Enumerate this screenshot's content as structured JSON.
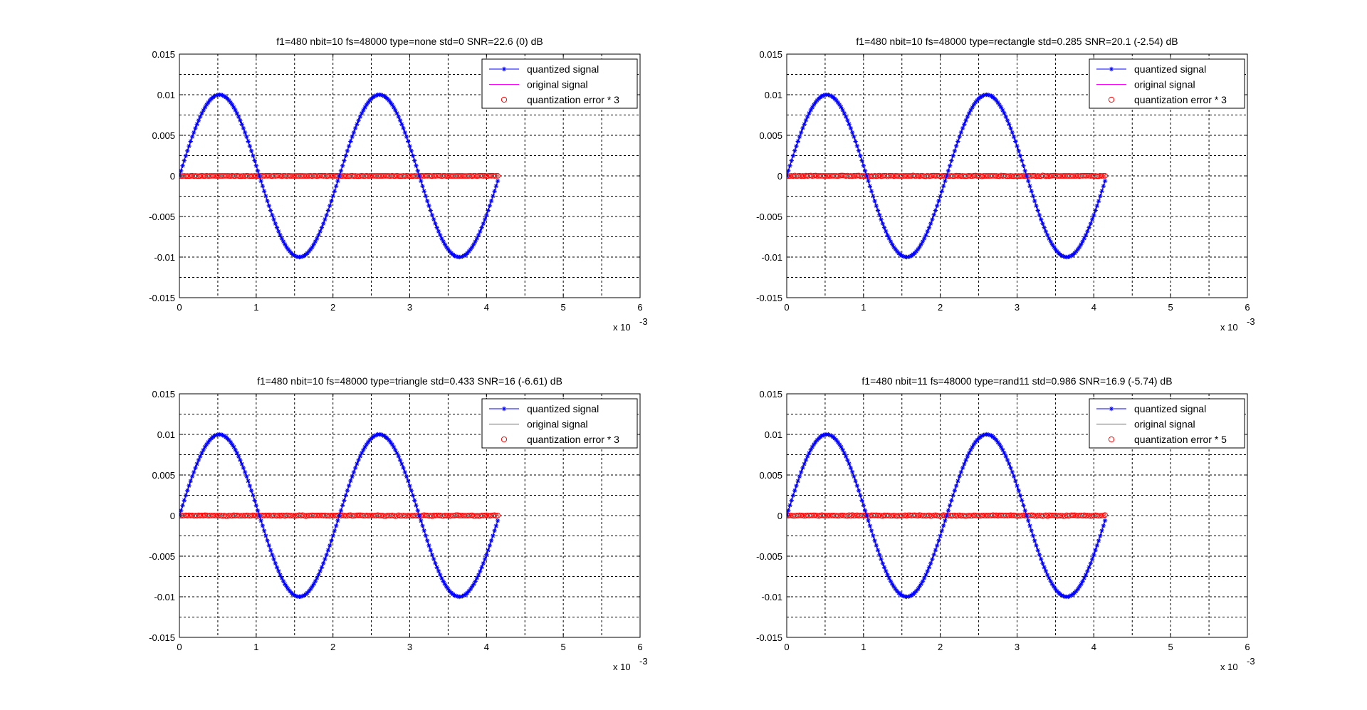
{
  "figure": {
    "x_multiplier_text": "x 10",
    "x_multiplier_exp": "-3"
  },
  "colors": {
    "quantized": "#0000ff",
    "original": "#ff00ff",
    "error": "#ff0000",
    "grid": "#000000"
  },
  "chart_data": [
    {
      "type": "line",
      "title": "f1=480 nbit=10 fs=48000 type=none std=0 SNR=22.6 (0) dB",
      "xlim": [
        0,
        6
      ],
      "ylim": [
        -0.015,
        0.015
      ],
      "x_ticks": [
        "0",
        "1",
        "2",
        "3",
        "4",
        "5",
        "6"
      ],
      "y_ticks": [
        "0.015",
        "0.01",
        "0.005",
        "0",
        "-0.005",
        "-0.01",
        "-0.015"
      ],
      "grid": true,
      "legend_position": "top-right",
      "params": {
        "f1": 480,
        "fs": 48000,
        "nbit": 10,
        "dither": "none",
        "amplitude": 0.01,
        "error_scale": 3
      },
      "series": [
        {
          "name": "quantized signal",
          "style": "line with asterisk markers",
          "color": "#0000ff"
        },
        {
          "name": "original signal",
          "style": "line",
          "color": "#ff00ff"
        },
        {
          "name": "quantization error * 3",
          "style": "circle markers",
          "color": "#ff0000"
        }
      ]
    },
    {
      "type": "line",
      "title": "f1=480 nbit=10 fs=48000 type=rectangle std=0.285 SNR=20.1 (-2.54) dB",
      "xlim": [
        0,
        6
      ],
      "ylim": [
        -0.015,
        0.015
      ],
      "x_ticks": [
        "0",
        "1",
        "2",
        "3",
        "4",
        "5",
        "6"
      ],
      "y_ticks": [
        "0.015",
        "0.01",
        "0.005",
        "0",
        "-0.005",
        "-0.01",
        "-0.015"
      ],
      "grid": true,
      "legend_position": "top-right",
      "params": {
        "f1": 480,
        "fs": 48000,
        "nbit": 10,
        "dither": "rectangle",
        "amplitude": 0.01,
        "error_scale": 3
      },
      "series": [
        {
          "name": "quantized signal",
          "style": "line with asterisk markers",
          "color": "#0000ff"
        },
        {
          "name": "original signal",
          "style": "line",
          "color": "#ff00ff"
        },
        {
          "name": "quantization error * 3",
          "style": "circle markers",
          "color": "#ff0000"
        }
      ]
    },
    {
      "type": "line",
      "title": "f1=480 nbit=10 fs=48000 type=triangle std=0.433 SNR=16 (-6.61) dB",
      "xlim": [
        0,
        6
      ],
      "ylim": [
        -0.015,
        0.015
      ],
      "x_ticks": [
        "0",
        "1",
        "2",
        "3",
        "4",
        "5",
        "6"
      ],
      "y_ticks": [
        "0.015",
        "0.01",
        "0.005",
        "0",
        "-0.005",
        "-0.01",
        "-0.015"
      ],
      "grid": true,
      "legend_position": "top-right",
      "params": {
        "f1": 480,
        "fs": 48000,
        "nbit": 10,
        "dither": "triangle",
        "amplitude": 0.01,
        "error_scale": 3
      },
      "series": [
        {
          "name": "quantized signal",
          "style": "line with asterisk markers",
          "color": "#0000ff"
        },
        {
          "name": "original signal",
          "style": "line",
          "color": "#ff00ff"
        },
        {
          "name": "quantization error * 3",
          "style": "circle markers",
          "color": "#ff0000"
        }
      ]
    },
    {
      "type": "line",
      "title": "f1=480 nbit=11 fs=48000 type=rand11 std=0.986 SNR=16.9 (-5.74) dB",
      "xlim": [
        0,
        6
      ],
      "ylim": [
        -0.015,
        0.015
      ],
      "x_ticks": [
        "0",
        "1",
        "2",
        "3",
        "4",
        "5",
        "6"
      ],
      "y_ticks": [
        "0.015",
        "0.01",
        "0.005",
        "0",
        "-0.005",
        "-0.01",
        "-0.015"
      ],
      "grid": true,
      "legend_position": "top-right",
      "params": {
        "f1": 480,
        "fs": 48000,
        "nbit": 11,
        "dither": "rand11",
        "amplitude": 0.01,
        "error_scale": 5
      },
      "series": [
        {
          "name": "quantized signal",
          "style": "line with asterisk markers",
          "color": "#0000ff"
        },
        {
          "name": "original signal",
          "style": "line",
          "color": "#ff00ff"
        },
        {
          "name": "quantization error * 5",
          "style": "circle markers",
          "color": "#ff0000"
        }
      ]
    }
  ]
}
